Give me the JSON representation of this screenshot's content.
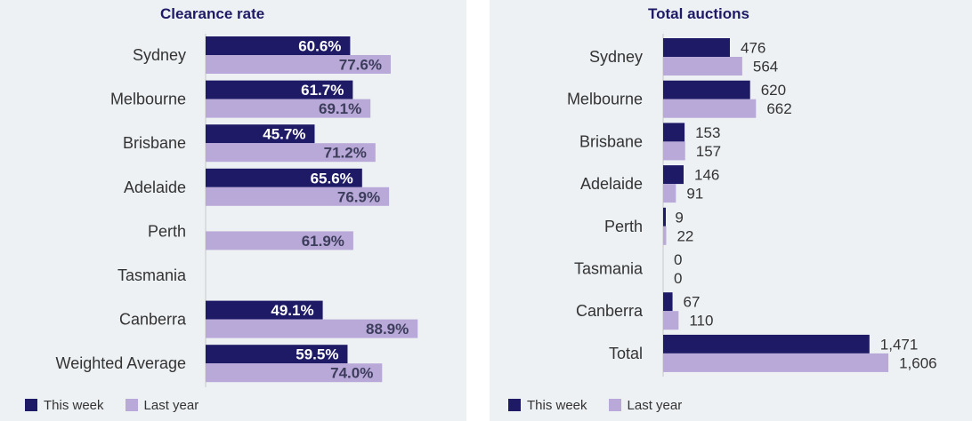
{
  "colors": {
    "this_week": "#1e1a66",
    "last_year": "#b9a9d8",
    "axis": "#c8c8c8",
    "label_dark": "#333333",
    "label_on_dark": "#ffffff"
  },
  "legend": {
    "this_week": "This week",
    "last_year": "Last year"
  },
  "chart_data": [
    {
      "type": "bar",
      "orientation": "horizontal",
      "title": "Clearance rate",
      "categories": [
        "Sydney",
        "Melbourne",
        "Brisbane",
        "Adelaide",
        "Perth",
        "Tasmania",
        "Canberra",
        "Weighted Average"
      ],
      "series": [
        {
          "name": "This week",
          "values": [
            60.6,
            61.7,
            45.7,
            65.6,
            null,
            null,
            49.1,
            59.5
          ],
          "labels": [
            "60.6%",
            "61.7%",
            "45.7%",
            "65.6%",
            "",
            "",
            "49.1%",
            "59.5%"
          ]
        },
        {
          "name": "Last year",
          "values": [
            77.6,
            69.1,
            71.2,
            76.9,
            61.9,
            null,
            88.9,
            74.0
          ],
          "labels": [
            "77.6%",
            "69.1%",
            "71.2%",
            "76.9%",
            "61.9%",
            "",
            "88.9%",
            "74.0%"
          ]
        }
      ],
      "xlim": [
        0,
        100
      ],
      "legend_position": "bottom-left",
      "grid": false
    },
    {
      "type": "bar",
      "orientation": "horizontal",
      "title": "Total auctions",
      "categories": [
        "Sydney",
        "Melbourne",
        "Brisbane",
        "Adelaide",
        "Perth",
        "Tasmania",
        "Canberra",
        "Total"
      ],
      "series": [
        {
          "name": "This week",
          "values": [
            476,
            620,
            153,
            146,
            9,
            0,
            67,
            1471
          ],
          "labels": [
            "476",
            "620",
            "153",
            "146",
            "9",
            "0",
            "67",
            "1,471"
          ]
        },
        {
          "name": "Last year",
          "values": [
            564,
            662,
            157,
            91,
            22,
            0,
            110,
            1606
          ],
          "labels": [
            "564",
            "662",
            "157",
            "91",
            "22",
            "0",
            "110",
            "1,606"
          ]
        }
      ],
      "xlim": [
        0,
        1650
      ],
      "legend_position": "bottom-left",
      "grid": false
    }
  ]
}
